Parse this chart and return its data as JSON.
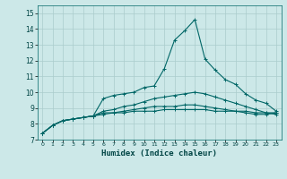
{
  "xlabel": "Humidex (Indice chaleur)",
  "background_color": "#cce8e8",
  "grid_color": "#aacccc",
  "line_color": "#006666",
  "xlim": [
    -0.5,
    23.5
  ],
  "ylim": [
    7,
    15.5
  ],
  "yticks": [
    7,
    8,
    9,
    10,
    11,
    12,
    13,
    14,
    15
  ],
  "xticks": [
    0,
    1,
    2,
    3,
    4,
    5,
    6,
    7,
    8,
    9,
    10,
    11,
    12,
    13,
    14,
    15,
    16,
    17,
    18,
    19,
    20,
    21,
    22,
    23
  ],
  "curves": [
    {
      "x": [
        0,
        1,
        2,
        3,
        4,
        5,
        6,
        7,
        8,
        9,
        10,
        11,
        12,
        13,
        14,
        15,
        16,
        17,
        18,
        19,
        20,
        21,
        22,
        23
      ],
      "y": [
        7.4,
        7.9,
        8.2,
        8.3,
        8.4,
        8.5,
        9.6,
        9.8,
        9.9,
        10.0,
        10.3,
        10.4,
        11.5,
        13.3,
        13.9,
        14.6,
        12.1,
        11.4,
        10.8,
        10.5,
        9.9,
        9.5,
        9.3,
        8.8
      ]
    },
    {
      "x": [
        0,
        1,
        2,
        3,
        4,
        5,
        6,
        7,
        8,
        9,
        10,
        11,
        12,
        13,
        14,
        15,
        16,
        17,
        18,
        19,
        20,
        21,
        22,
        23
      ],
      "y": [
        7.4,
        7.9,
        8.2,
        8.3,
        8.4,
        8.5,
        8.8,
        8.9,
        9.1,
        9.2,
        9.4,
        9.6,
        9.7,
        9.8,
        9.9,
        10.0,
        9.9,
        9.7,
        9.5,
        9.3,
        9.1,
        8.9,
        8.7,
        8.6
      ]
    },
    {
      "x": [
        0,
        1,
        2,
        3,
        4,
        5,
        6,
        7,
        8,
        9,
        10,
        11,
        12,
        13,
        14,
        15,
        16,
        17,
        18,
        19,
        20,
        21,
        22,
        23
      ],
      "y": [
        7.4,
        7.9,
        8.2,
        8.3,
        8.4,
        8.5,
        8.7,
        8.7,
        8.8,
        8.9,
        9.0,
        9.1,
        9.1,
        9.1,
        9.2,
        9.2,
        9.1,
        9.0,
        8.9,
        8.8,
        8.7,
        8.6,
        8.6,
        8.7
      ]
    },
    {
      "x": [
        0,
        1,
        2,
        3,
        4,
        5,
        6,
        7,
        8,
        9,
        10,
        11,
        12,
        13,
        14,
        15,
        16,
        17,
        18,
        19,
        20,
        21,
        22,
        23
      ],
      "y": [
        7.4,
        7.9,
        8.2,
        8.3,
        8.4,
        8.5,
        8.6,
        8.7,
        8.7,
        8.8,
        8.8,
        8.8,
        8.9,
        8.9,
        8.9,
        8.9,
        8.9,
        8.8,
        8.8,
        8.8,
        8.8,
        8.7,
        8.7,
        8.7
      ]
    }
  ]
}
